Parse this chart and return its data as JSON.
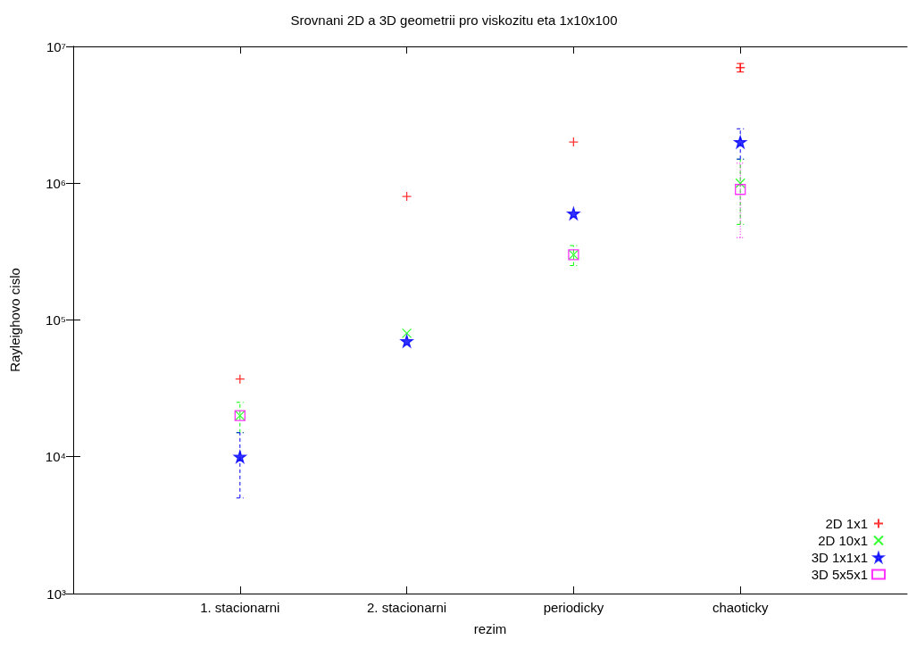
{
  "chart_data": {
    "type": "scatter",
    "title": "Srovnani 2D a 3D geometrii pro viskozitu eta 1x10x100",
    "xlabel": "rezim",
    "ylabel": "Rayleighovo cislo",
    "categories": [
      "1. stacionarni",
      "2. stacionarni",
      "periodicky",
      "chaoticky"
    ],
    "series": [
      {
        "name": "2D 1x1",
        "color": "#ff0000",
        "marker": "cross",
        "line_style": "solid",
        "values": [
          37000,
          800000,
          2000000,
          7000000
        ],
        "errors": [
          null,
          null,
          null,
          [
            6500000,
            7500000
          ]
        ]
      },
      {
        "name": "2D 10x1",
        "color": "#00ff00",
        "marker": "cross",
        "line_style": "dashed",
        "values": [
          20000,
          80000,
          300000,
          1000000
        ],
        "errors": [
          [
            15000,
            25000
          ],
          null,
          [
            250000,
            350000
          ],
          [
            500000,
            1500000
          ]
        ]
      },
      {
        "name": "3D 1x1x1",
        "color": "#0000ff",
        "marker": "star",
        "line_style": "dashed",
        "values": [
          10000,
          70000,
          600000,
          2000000
        ],
        "errors": [
          [
            5000,
            15000
          ],
          null,
          null,
          [
            1500000,
            2500000
          ]
        ]
      },
      {
        "name": "3D 5x5x1",
        "color": "#ff00ff",
        "marker": "square",
        "line_style": "dotted",
        "values": [
          20000,
          null,
          300000,
          900000
        ],
        "errors": [
          null,
          null,
          null,
          [
            400000,
            1400000
          ]
        ]
      }
    ],
    "ylim": [
      1000,
      10000000
    ],
    "log": "y",
    "yticks": [
      {
        "value": 1000,
        "label": "10³"
      },
      {
        "value": 10000,
        "label": "10⁴"
      },
      {
        "value": 100000,
        "label": "10⁵"
      },
      {
        "value": 1000000,
        "label": "10⁶"
      },
      {
        "value": 10000000,
        "label": "10⁷"
      }
    ],
    "grid": false,
    "legend": "bottom right"
  }
}
